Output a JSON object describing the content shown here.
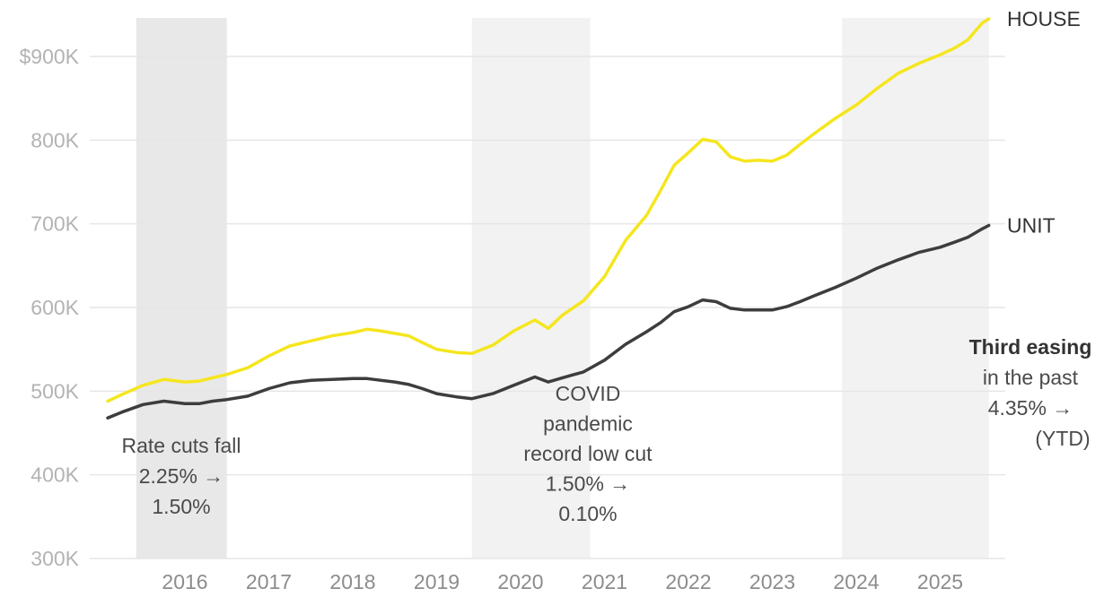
{
  "chart_data": {
    "type": "line",
    "title": "",
    "xlabel": "",
    "ylabel": "",
    "x_range": [
      2015.08,
      2025.58
    ],
    "ylim": [
      300000,
      945000
    ],
    "y_ticks": [
      {
        "value": 300000,
        "label": "300K"
      },
      {
        "value": 400000,
        "label": "400K"
      },
      {
        "value": 500000,
        "label": "500K"
      },
      {
        "value": 600000,
        "label": "600K"
      },
      {
        "value": 700000,
        "label": "700K"
      },
      {
        "value": 800000,
        "label": "800K"
      },
      {
        "value": 900000,
        "label": "$900K"
      }
    ],
    "x_ticks": [
      {
        "value": 2016,
        "label": "2016"
      },
      {
        "value": 2017,
        "label": "2017"
      },
      {
        "value": 2018,
        "label": "2018"
      },
      {
        "value": 2019,
        "label": "2019"
      },
      {
        "value": 2020,
        "label": "2020"
      },
      {
        "value": 2021,
        "label": "2021"
      },
      {
        "value": 2022,
        "label": "2022"
      },
      {
        "value": 2023,
        "label": "2023"
      },
      {
        "value": 2024,
        "label": "2024"
      },
      {
        "value": 2025,
        "label": "2025"
      }
    ],
    "shaded_periods": [
      {
        "start": 2015.42,
        "end": 2016.5,
        "color": "#e8e8e8"
      },
      {
        "start": 2019.42,
        "end": 2020.83,
        "color": "#f2f2f2"
      },
      {
        "start": 2023.83,
        "end": 2025.58,
        "color": "#f2f2f2"
      }
    ],
    "series": [
      {
        "name": "HOUSE",
        "color": "#f5e61e",
        "points": [
          [
            2015.08,
            488000
          ],
          [
            2015.25,
            496000
          ],
          [
            2015.5,
            507000
          ],
          [
            2015.75,
            514000
          ],
          [
            2016.0,
            511000
          ],
          [
            2016.17,
            512000
          ],
          [
            2016.33,
            516000
          ],
          [
            2016.5,
            520000
          ],
          [
            2016.75,
            528000
          ],
          [
            2017.0,
            542000
          ],
          [
            2017.25,
            554000
          ],
          [
            2017.5,
            560000
          ],
          [
            2017.75,
            566000
          ],
          [
            2018.0,
            570000
          ],
          [
            2018.17,
            574000
          ],
          [
            2018.33,
            572000
          ],
          [
            2018.5,
            569000
          ],
          [
            2018.67,
            566000
          ],
          [
            2018.83,
            558000
          ],
          [
            2019.0,
            550000
          ],
          [
            2019.25,
            546000
          ],
          [
            2019.42,
            545000
          ],
          [
            2019.67,
            555000
          ],
          [
            2019.92,
            572000
          ],
          [
            2020.17,
            585000
          ],
          [
            2020.33,
            575000
          ],
          [
            2020.5,
            591000
          ],
          [
            2020.75,
            608000
          ],
          [
            2021.0,
            637000
          ],
          [
            2021.25,
            680000
          ],
          [
            2021.5,
            710000
          ],
          [
            2021.67,
            740000
          ],
          [
            2021.83,
            770000
          ],
          [
            2022.0,
            785000
          ],
          [
            2022.17,
            801000
          ],
          [
            2022.33,
            798000
          ],
          [
            2022.5,
            780000
          ],
          [
            2022.67,
            775000
          ],
          [
            2022.83,
            776000
          ],
          [
            2023.0,
            775000
          ],
          [
            2023.17,
            782000
          ],
          [
            2023.33,
            795000
          ],
          [
            2023.5,
            808000
          ],
          [
            2023.75,
            826000
          ],
          [
            2024.0,
            842000
          ],
          [
            2024.25,
            862000
          ],
          [
            2024.5,
            880000
          ],
          [
            2024.75,
            892000
          ],
          [
            2025.0,
            902000
          ],
          [
            2025.17,
            910000
          ],
          [
            2025.33,
            920000
          ],
          [
            2025.5,
            940000
          ],
          [
            2025.58,
            945000
          ]
        ]
      },
      {
        "name": "UNIT",
        "color": "#3d3d3d",
        "points": [
          [
            2015.08,
            468000
          ],
          [
            2015.25,
            475000
          ],
          [
            2015.5,
            484000
          ],
          [
            2015.75,
            488000
          ],
          [
            2016.0,
            485000
          ],
          [
            2016.17,
            485000
          ],
          [
            2016.33,
            488000
          ],
          [
            2016.5,
            490000
          ],
          [
            2016.75,
            494000
          ],
          [
            2017.0,
            503000
          ],
          [
            2017.25,
            510000
          ],
          [
            2017.5,
            513000
          ],
          [
            2017.75,
            514000
          ],
          [
            2018.0,
            515000
          ],
          [
            2018.17,
            515000
          ],
          [
            2018.33,
            513000
          ],
          [
            2018.5,
            511000
          ],
          [
            2018.67,
            508000
          ],
          [
            2018.83,
            503000
          ],
          [
            2019.0,
            497000
          ],
          [
            2019.25,
            493000
          ],
          [
            2019.42,
            491000
          ],
          [
            2019.67,
            497000
          ],
          [
            2019.92,
            507000
          ],
          [
            2020.17,
            517000
          ],
          [
            2020.33,
            511000
          ],
          [
            2020.5,
            516000
          ],
          [
            2020.75,
            523000
          ],
          [
            2021.0,
            537000
          ],
          [
            2021.25,
            556000
          ],
          [
            2021.5,
            571000
          ],
          [
            2021.67,
            582000
          ],
          [
            2021.83,
            595000
          ],
          [
            2022.0,
            601000
          ],
          [
            2022.17,
            609000
          ],
          [
            2022.33,
            607000
          ],
          [
            2022.5,
            599000
          ],
          [
            2022.67,
            597000
          ],
          [
            2022.83,
            597000
          ],
          [
            2023.0,
            597000
          ],
          [
            2023.17,
            601000
          ],
          [
            2023.33,
            607000
          ],
          [
            2023.5,
            614000
          ],
          [
            2023.75,
            624000
          ],
          [
            2024.0,
            635000
          ],
          [
            2024.25,
            647000
          ],
          [
            2024.5,
            657000
          ],
          [
            2024.75,
            666000
          ],
          [
            2025.0,
            672000
          ],
          [
            2025.17,
            678000
          ],
          [
            2025.33,
            684000
          ],
          [
            2025.5,
            694000
          ],
          [
            2025.58,
            698000
          ]
        ]
      }
    ],
    "annotations": [
      {
        "lines": [
          "Rate cuts fall",
          "2.25% →",
          "1.50%"
        ],
        "bold_first": false
      },
      {
        "lines": [
          "COVID",
          "pandemic",
          "record low cut",
          "1.50% →",
          "0.10%"
        ],
        "bold_first": false
      },
      {
        "lines": [
          "Third easing",
          "in the past",
          "4.35% →",
          "(YTD)"
        ],
        "bold_first": true
      }
    ]
  }
}
